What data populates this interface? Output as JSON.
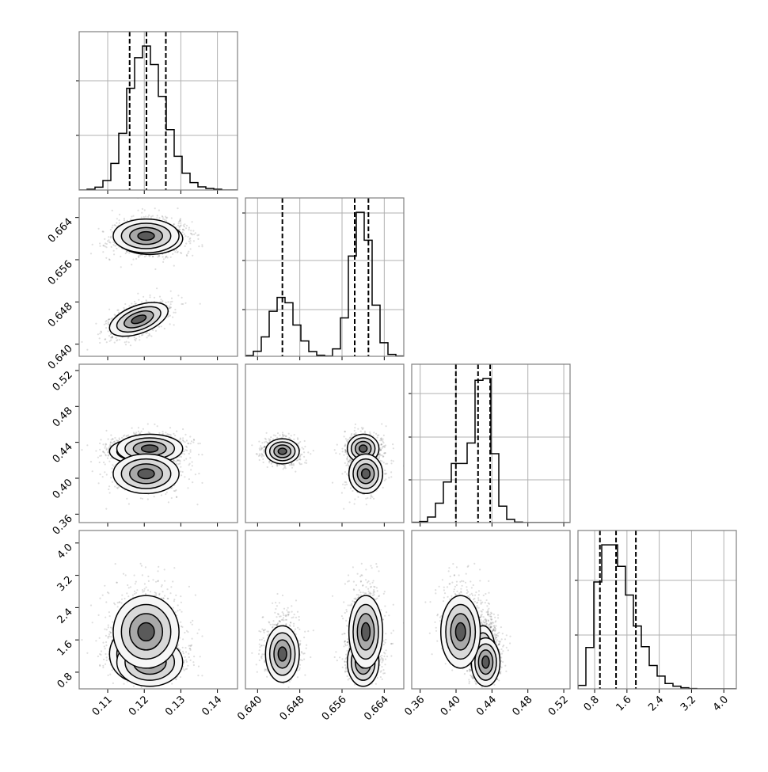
{
  "chart_data": {
    "type": "corner",
    "title": "",
    "n_parameters": 4,
    "axes": [
      {
        "range": [
          0.1022,
          0.1455
        ],
        "ticks": [
          "0.11",
          "0.12",
          "0.13",
          "0.14"
        ],
        "tick_values": [
          0.11,
          0.12,
          0.13,
          0.14
        ]
      },
      {
        "range": [
          0.6377,
          0.6677
        ],
        "ticks": [
          "0.640",
          "0.648",
          "0.656",
          "0.664"
        ],
        "tick_values": [
          0.64,
          0.648,
          0.656,
          0.664
        ]
      },
      {
        "range": [
          0.3506,
          0.527
        ],
        "ticks": [
          "0.36",
          "0.40",
          "0.44",
          "0.48",
          "0.52"
        ],
        "tick_values": [
          0.36,
          0.4,
          0.44,
          0.48,
          0.52
        ]
      },
      {
        "range": [
          0.387,
          4.31
        ],
        "ticks": [
          "0.8",
          "1.6",
          "2.4",
          "3.2",
          "4.0"
        ],
        "tick_values": [
          0.8,
          1.6,
          2.4,
          3.2,
          4.0
        ]
      }
    ],
    "histograms": [
      {
        "bins": 20,
        "heights": [
          0,
          3,
          11,
          36,
          101,
          215,
          386,
          502,
          546,
          476,
          355,
          229,
          128,
          64,
          28,
          12,
          6,
          3,
          0,
          0
        ],
        "quantiles": [
          0.116,
          0.1206,
          0.1259
        ]
      },
      {
        "bins": 20,
        "heights": [
          3,
          19,
          73,
          170,
          222,
          202,
          118,
          58,
          18,
          4,
          1,
          28,
          145,
          378,
          543,
          438,
          193,
          51,
          7,
          1
        ],
        "quantiles": [
          0.6447,
          0.6584,
          0.661
        ]
      },
      {
        "bins": 20,
        "heights": [
          1,
          4,
          21,
          73,
          153,
          223,
          223,
          300,
          537,
          543,
          260,
          62,
          12,
          2,
          0,
          0,
          0,
          0,
          0,
          0
        ],
        "quantiles": [
          0.3998,
          0.4245,
          0.438
        ]
      },
      {
        "bins": 20,
        "heights": [
          13,
          156,
          403,
          543,
          543,
          462,
          354,
          237,
          159,
          88,
          48,
          20,
          10,
          4,
          1,
          0,
          0,
          0,
          0,
          0
        ],
        "quantiles": [
          0.931,
          1.33,
          1.821
        ]
      }
    ],
    "clusters": [
      {
        "weight": 0.3,
        "mean": [
          0.1185,
          0.6447,
          0.43,
          1.25
        ],
        "sd": [
          0.004,
          0.0016,
          0.007,
          0.35
        ],
        "corr01": 0.5
      },
      {
        "weight": 0.45,
        "mean": [
          0.1215,
          0.66,
          0.433,
          1.05
        ],
        "sd": [
          0.0045,
          0.0015,
          0.008,
          0.3
        ],
        "corr01": 0.0
      },
      {
        "weight": 0.25,
        "mean": [
          0.1205,
          0.6605,
          0.405,
          1.8
        ],
        "sd": [
          0.0045,
          0.0016,
          0.011,
          0.45
        ],
        "corr01": 0.0
      }
    ],
    "contour_levels_sigma": [
      0.5,
      1.0,
      1.5,
      2.0
    ],
    "grid": "histograms only",
    "legend": "none",
    "colors": {
      "line": "#000000",
      "points": "#000000",
      "grid": "#b0b0b0",
      "frame": "#808080"
    }
  }
}
